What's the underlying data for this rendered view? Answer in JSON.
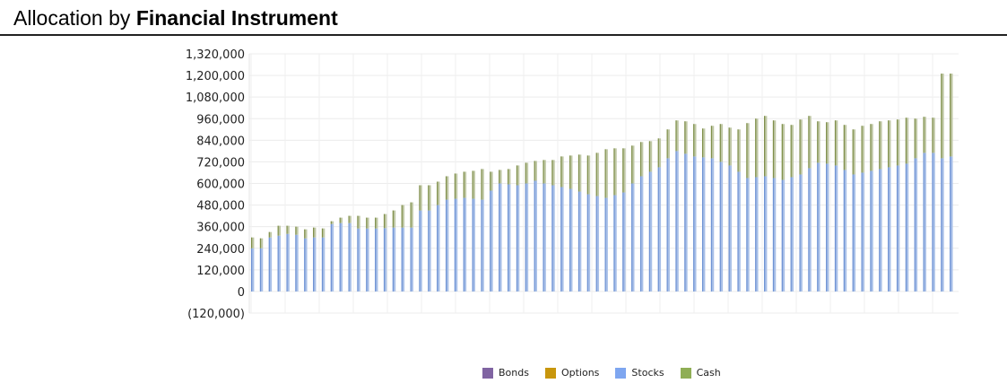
{
  "title": {
    "prefix": "Allocation by ",
    "bold": "Financial Instrument"
  },
  "chart_data": {
    "type": "bar",
    "stacked": true,
    "title": "Allocation by Financial Instrument",
    "ylim": [
      -120000,
      1320000
    ],
    "yticks": [
      -120000,
      0,
      120000,
      240000,
      360000,
      480000,
      600000,
      720000,
      840000,
      960000,
      1080000,
      1200000,
      1320000
    ],
    "ytick_labels": [
      "(120,000)",
      "0",
      "120,000",
      "240,000",
      "360,000",
      "480,000",
      "600,000",
      "720,000",
      "840,000",
      "960,000",
      "1,080,000",
      "1,200,000",
      "1,320,000"
    ],
    "grid": true,
    "legend_position": "bottom",
    "series": [
      {
        "name": "Bonds",
        "color": "#8064a2",
        "values": []
      },
      {
        "name": "Options",
        "color": "#c8960c",
        "values": []
      },
      {
        "name": "Stocks",
        "color": "#7ea6f0",
        "values": [
          240000,
          240000,
          300000,
          310000,
          320000,
          315000,
          295000,
          300000,
          300000,
          375000,
          380000,
          380000,
          350000,
          350000,
          350000,
          352000,
          355000,
          355000,
          355000,
          450000,
          450000,
          480000,
          510000,
          515000,
          520000,
          515000,
          510000,
          560000,
          600000,
          595000,
          590000,
          600000,
          615000,
          600000,
          590000,
          580000,
          570000,
          555000,
          540000,
          530000,
          520000,
          535000,
          550000,
          600000,
          640000,
          665000,
          690000,
          740000,
          780000,
          765000,
          750000,
          745000,
          740000,
          720000,
          700000,
          665000,
          630000,
          635000,
          640000,
          630000,
          620000,
          635000,
          650000,
          685000,
          715000,
          710000,
          700000,
          675000,
          650000,
          660000,
          670000,
          680000,
          690000,
          700000,
          710000,
          740000,
          770000,
          770000,
          740000,
          750000
        ]
      },
      {
        "name": "Cash",
        "color": "#8fae55",
        "values": [
          60000,
          55000,
          30000,
          55000,
          45000,
          45000,
          50000,
          55000,
          50000,
          15000,
          30000,
          40000,
          70000,
          60000,
          60000,
          78000,
          95000,
          125000,
          140000,
          140000,
          140000,
          130000,
          130000,
          140000,
          145000,
          155000,
          170000,
          105000,
          75000,
          85000,
          110000,
          115000,
          110000,
          130000,
          140000,
          170000,
          185000,
          205000,
          215000,
          240000,
          270000,
          260000,
          245000,
          210000,
          190000,
          170000,
          160000,
          160000,
          170000,
          180000,
          180000,
          160000,
          180000,
          210000,
          210000,
          235000,
          305000,
          325000,
          335000,
          320000,
          310000,
          290000,
          305000,
          290000,
          230000,
          230000,
          250000,
          250000,
          250000,
          260000,
          260000,
          265000,
          260000,
          255000,
          255000,
          220000,
          200000,
          195000,
          470000,
          460000
        ]
      }
    ]
  }
}
